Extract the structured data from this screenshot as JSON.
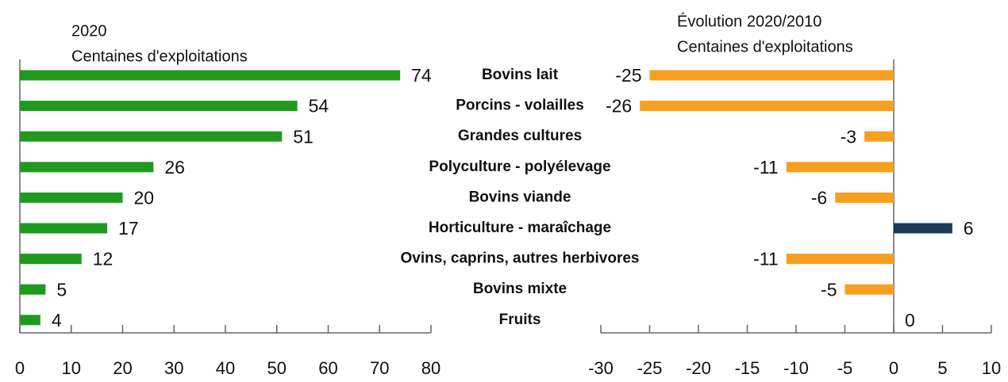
{
  "chart_data": [
    {
      "type": "hbar",
      "title": "2020",
      "subtitle": "Centaines d'exploitations",
      "categories": [
        "Bovins lait",
        "Porcins - volailles",
        "Grandes cultures",
        "Polyculture - polyélevage",
        "Bovins viande",
        "Horticulture - maraîchage",
        "Ovins, caprins, autres herbivores",
        "Bovins mixte",
        "Fruits"
      ],
      "values": [
        74,
        54,
        51,
        26,
        20,
        17,
        12,
        5,
        4
      ],
      "color": "#1f9a1f",
      "xlim": [
        0,
        80
      ],
      "xticks": [
        0,
        10,
        20,
        30,
        40,
        50,
        60,
        70,
        80
      ]
    },
    {
      "type": "hbar",
      "title": "Évolution 2020/2010",
      "subtitle": "Centaines d'exploitations",
      "values": [
        -25,
        -26,
        -3,
        -11,
        -6,
        6,
        -11,
        -5,
        0
      ],
      "colors": [
        "#f7a01f",
        "#f7a01f",
        "#f7a01f",
        "#f7a01f",
        "#f7a01f",
        "#1b3a5c",
        "#f7a01f",
        "#f7a01f",
        "#f7a01f"
      ],
      "xlim": [
        -30,
        10
      ],
      "xticks": [
        -30,
        -25,
        -20,
        -15,
        -10,
        -5,
        0,
        5,
        10
      ]
    }
  ]
}
